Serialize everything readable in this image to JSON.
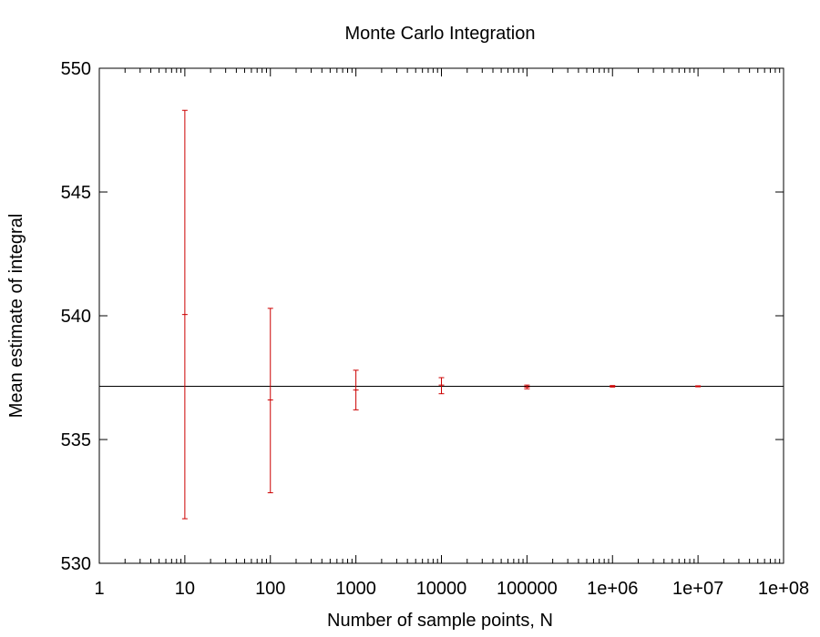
{
  "chart_data": {
    "type": "scatter",
    "title": "Monte Carlo Integration",
    "xlabel": "Number of sample points, N",
    "ylabel": "Mean estimate of integral",
    "x_scale": "log",
    "xlim": [
      1,
      100000000
    ],
    "ylim": [
      530,
      550
    ],
    "x_ticks": [
      1,
      10,
      100,
      1000,
      10000,
      100000,
      1000000,
      10000000,
      100000000
    ],
    "x_tick_labels": [
      "1",
      "10",
      "100",
      "1000",
      "10000",
      "100000",
      "1e+06",
      "1e+07",
      "1e+08"
    ],
    "y_ticks": [
      530,
      535,
      540,
      545,
      550
    ],
    "y_tick_labels": [
      "530",
      "535",
      "540",
      "545",
      "550"
    ],
    "grid": false,
    "reference_line": {
      "y": 537.15
    },
    "series": [
      {
        "points": [
          {
            "x": 10,
            "y": 540.05,
            "y_low": 531.8,
            "y_high": 548.3
          },
          {
            "x": 100,
            "y": 536.6,
            "y_low": 532.85,
            "y_high": 540.3
          },
          {
            "x": 1000,
            "y": 537.0,
            "y_low": 536.2,
            "y_high": 537.8
          },
          {
            "x": 10000,
            "y": 537.2,
            "y_low": 536.85,
            "y_high": 537.5
          },
          {
            "x": 100000,
            "y": 537.12,
            "y_low": 537.05,
            "y_high": 537.2
          },
          {
            "x": 1000000,
            "y": 537.15,
            "y_low": 537.12,
            "y_high": 537.18
          },
          {
            "x": 10000000,
            "y": 537.15,
            "y_low": 537.13,
            "y_high": 537.17
          }
        ]
      }
    ],
    "colors": {
      "errorbar": "#cc0000",
      "axis": "#000000",
      "reference_line": "#000000"
    }
  }
}
